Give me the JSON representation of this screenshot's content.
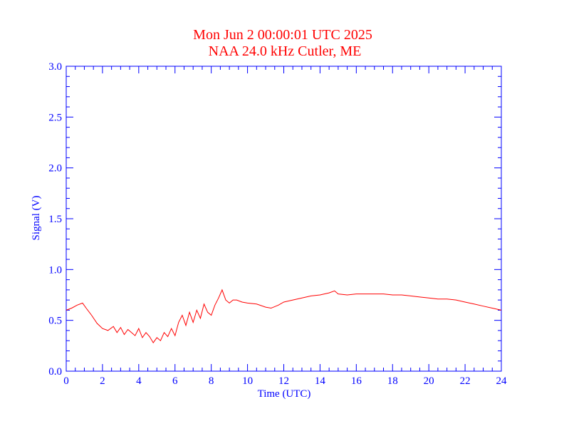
{
  "chart_data": {
    "type": "line",
    "title": "Mon Jun 2 00:00:01 UTC 2025",
    "subtitle": "NAA 24.0 kHz Cutler, ME",
    "xlabel": "Time (UTC)",
    "ylabel": "Signal (V)",
    "xlim": [
      0,
      24
    ],
    "ylim": [
      0.0,
      3.0
    ],
    "x_ticks": [
      "0",
      "2",
      "4",
      "6",
      "8",
      "10",
      "12",
      "14",
      "16",
      "18",
      "20",
      "22",
      "24"
    ],
    "y_ticks": [
      "0.0",
      "0.5",
      "1.0",
      "1.5",
      "2.0",
      "2.5",
      "3.0"
    ],
    "grid": false,
    "colors": {
      "axes": "#0000ff",
      "series": "#ff0000",
      "title": "#ff0000"
    },
    "series": [
      {
        "x": [
          0.0,
          0.3,
          0.6,
          0.9,
          1.1,
          1.4,
          1.7,
          2.0,
          2.3,
          2.6,
          2.8,
          3.0,
          3.2,
          3.4,
          3.6,
          3.8,
          4.0,
          4.2,
          4.4,
          4.6,
          4.8,
          5.0,
          5.2,
          5.4,
          5.6,
          5.8,
          6.0,
          6.2,
          6.4,
          6.6,
          6.8,
          7.0,
          7.2,
          7.4,
          7.6,
          7.8,
          8.0,
          8.2,
          8.4,
          8.6,
          8.8,
          9.0,
          9.2,
          9.4,
          9.7,
          10.0,
          10.5,
          11.0,
          11.3,
          11.7,
          12.0,
          12.5,
          13.0,
          13.5,
          14.0,
          14.5,
          14.8,
          15.0,
          15.5,
          16.0,
          16.5,
          17.0,
          17.5,
          18.0,
          18.5,
          19.0,
          19.5,
          20.0,
          20.5,
          21.0,
          21.5,
          22.0,
          22.5,
          23.0,
          23.5,
          24.0
        ],
        "values": [
          0.6,
          0.62,
          0.65,
          0.67,
          0.62,
          0.55,
          0.47,
          0.42,
          0.4,
          0.44,
          0.38,
          0.43,
          0.36,
          0.41,
          0.38,
          0.35,
          0.42,
          0.33,
          0.38,
          0.34,
          0.28,
          0.33,
          0.3,
          0.38,
          0.34,
          0.42,
          0.35,
          0.48,
          0.55,
          0.45,
          0.58,
          0.48,
          0.6,
          0.52,
          0.66,
          0.58,
          0.55,
          0.65,
          0.72,
          0.8,
          0.7,
          0.67,
          0.7,
          0.7,
          0.68,
          0.67,
          0.66,
          0.63,
          0.62,
          0.65,
          0.68,
          0.7,
          0.72,
          0.74,
          0.75,
          0.77,
          0.79,
          0.76,
          0.75,
          0.76,
          0.76,
          0.76,
          0.76,
          0.75,
          0.75,
          0.74,
          0.73,
          0.72,
          0.71,
          0.71,
          0.7,
          0.68,
          0.66,
          0.64,
          0.62,
          0.6
        ]
      }
    ]
  }
}
